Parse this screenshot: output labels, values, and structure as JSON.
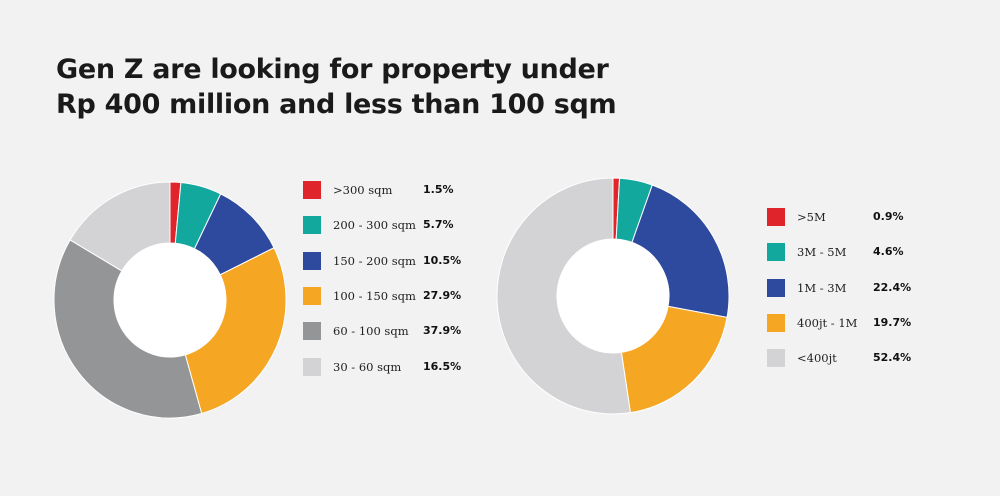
{
  "title_lines": [
    "Gen Z are looking for property under",
    "Rp 400 million and less than 100 sqm"
  ],
  "chart_data": [
    {
      "type": "pie",
      "donut": true,
      "legend_position": "right",
      "slices": [
        {
          "label": ">300 sqm",
          "value": 1.5,
          "display": "1.5%",
          "color": "#e0242c"
        },
        {
          "label": "200 - 300 sqm",
          "value": 5.7,
          "display": "5.7%",
          "color": "#13a89e"
        },
        {
          "label": "150 - 200 sqm",
          "value": 10.5,
          "display": "10.5%",
          "color": "#2e4a9e"
        },
        {
          "label": "100 - 150 sqm",
          "value": 27.9,
          "display": "27.9%",
          "color": "#f5a623"
        },
        {
          "label": "60 - 100 sqm",
          "value": 37.9,
          "display": "37.9%",
          "color": "#949597"
        },
        {
          "label": "30 - 60 sqm",
          "value": 16.5,
          "display": "16.5%",
          "color": "#d3d3d5"
        }
      ]
    },
    {
      "type": "pie",
      "donut": true,
      "legend_position": "right",
      "slices": [
        {
          "label": ">5M",
          "value": 0.9,
          "display": "0.9%",
          "color": "#e0242c"
        },
        {
          "label": "3M - 5M",
          "value": 4.6,
          "display": "4.6%",
          "color": "#13a89e"
        },
        {
          "label": "1M - 3M",
          "value": 22.4,
          "display": "22.4%",
          "color": "#2e4a9e"
        },
        {
          "label": "400jt - 1M",
          "value": 19.7,
          "display": "19.7%",
          "color": "#f5a623"
        },
        {
          "label": "<400jt",
          "value": 52.4,
          "display": "52.4%",
          "color": "#d3d3d5"
        }
      ]
    }
  ]
}
